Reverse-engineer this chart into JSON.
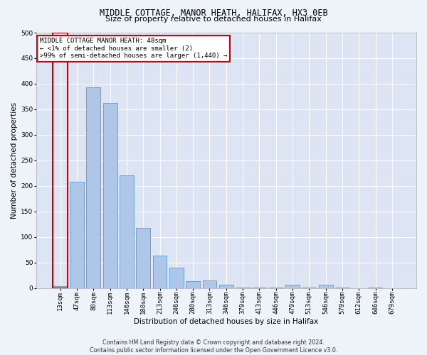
{
  "title1": "MIDDLE COTTAGE, MANOR HEATH, HALIFAX, HX3 0EB",
  "title2": "Size of property relative to detached houses in Halifax",
  "xlabel": "Distribution of detached houses by size in Halifax",
  "ylabel": "Number of detached properties",
  "categories": [
    "13sqm",
    "47sqm",
    "80sqm",
    "113sqm",
    "146sqm",
    "180sqm",
    "213sqm",
    "246sqm",
    "280sqm",
    "313sqm",
    "346sqm",
    "379sqm",
    "413sqm",
    "446sqm",
    "479sqm",
    "513sqm",
    "546sqm",
    "579sqm",
    "612sqm",
    "646sqm",
    "679sqm"
  ],
  "values": [
    3,
    208,
    393,
    362,
    221,
    118,
    63,
    40,
    13,
    14,
    6,
    1,
    1,
    1,
    6,
    1,
    6,
    1,
    0,
    1,
    0
  ],
  "bar_color": "#aec6e8",
  "bar_edge_color": "#5b9bd5",
  "highlight_color": "#cc0000",
  "annotation_box_text": "MIDDLE COTTAGE MANOR HEATH: 48sqm\n← <1% of detached houses are smaller (2)\n>99% of semi-detached houses are larger (1,440) →",
  "annotation_box_color": "#ffffff",
  "annotation_box_edge_color": "#cc0000",
  "ylim": [
    0,
    500
  ],
  "yticks": [
    0,
    50,
    100,
    150,
    200,
    250,
    300,
    350,
    400,
    450,
    500
  ],
  "footnote": "Contains HM Land Registry data © Crown copyright and database right 2024.\nContains public sector information licensed under the Open Government Licence v3.0.",
  "bg_color": "#eef2f9",
  "plot_bg_color": "#dde5f4",
  "grid_color": "#ffffff",
  "title_fontsize": 8.5,
  "subtitle_fontsize": 8,
  "axis_label_fontsize": 7.5,
  "tick_fontsize": 6.5,
  "annotation_fontsize": 6.5,
  "footnote_fontsize": 5.8
}
